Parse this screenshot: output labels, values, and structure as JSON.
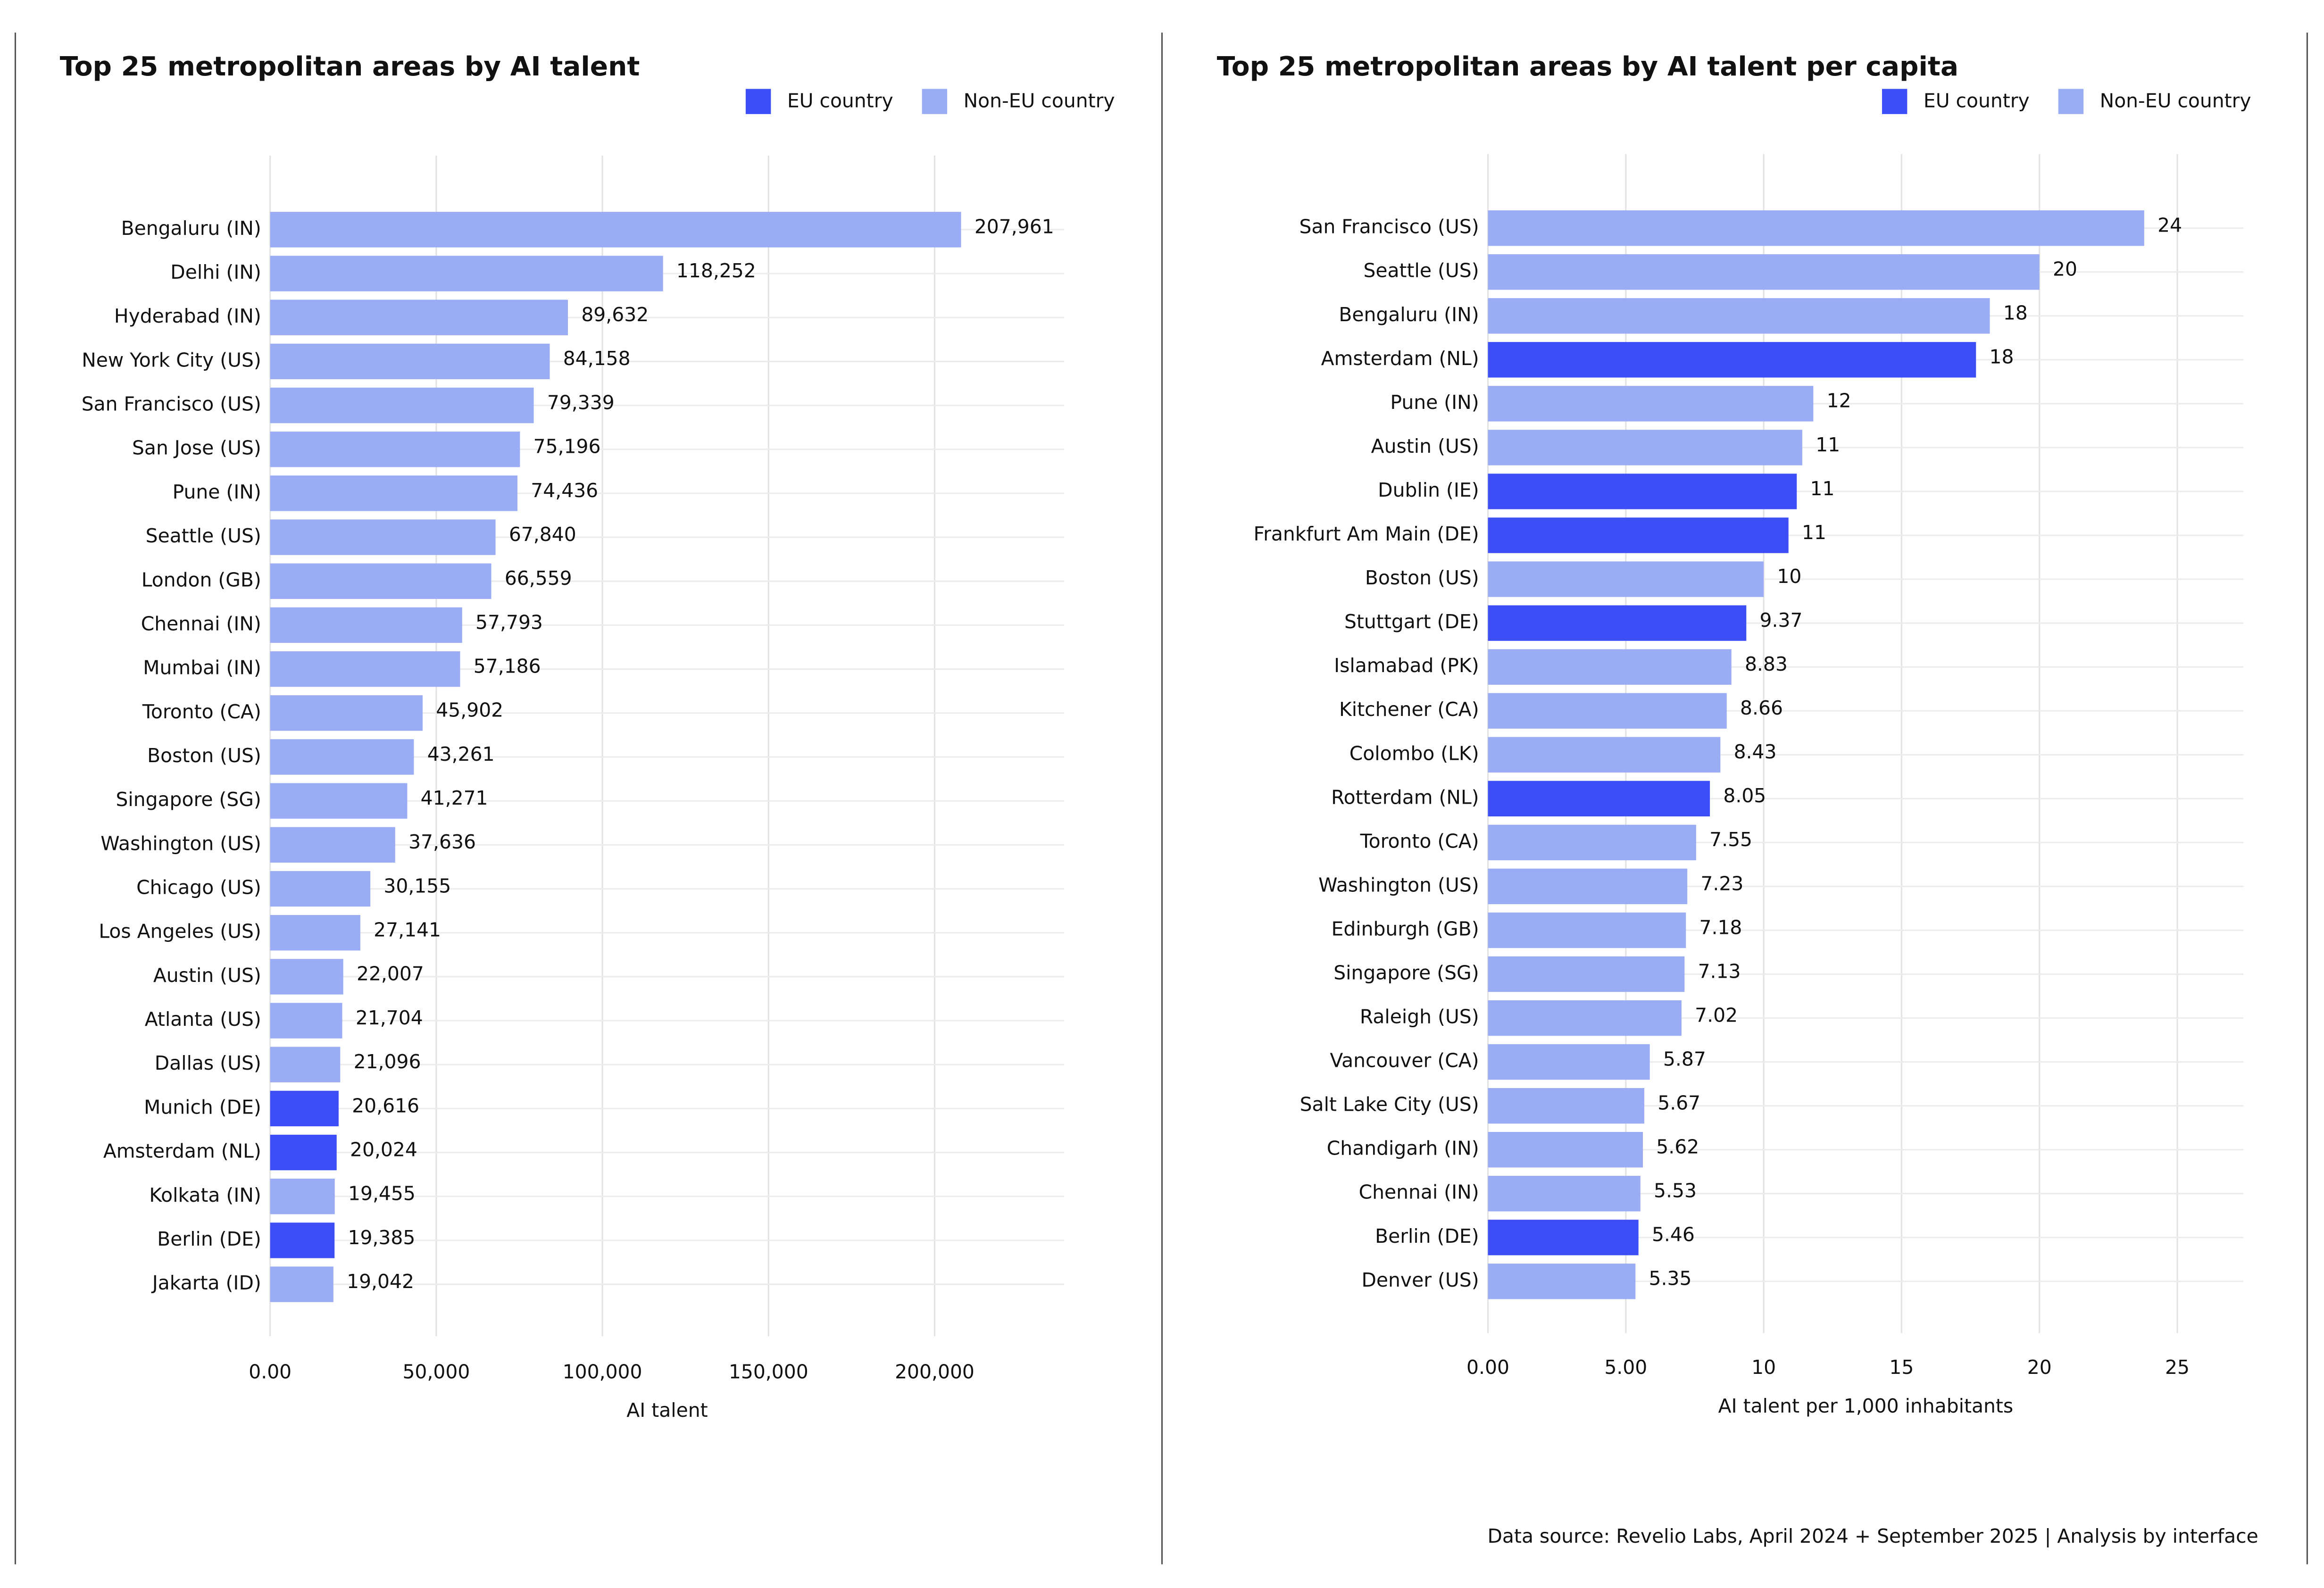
{
  "chart_data": [
    {
      "type": "hbar",
      "title": "Top 25 metropolitan areas by AI talent",
      "xlabel": "AI talent",
      "categories": [
        "Bengaluru (IN)",
        "Delhi (IN)",
        "Hyderabad (IN)",
        "New York City (US)",
        "San Francisco (US)",
        "San Jose (US)",
        "Pune (IN)",
        "Seattle (US)",
        "London (GB)",
        "Chennai (IN)",
        "Mumbai (IN)",
        "Toronto (CA)",
        "Boston (US)",
        "Singapore (SG)",
        "Washington (US)",
        "Chicago (US)",
        "Los Angeles (US)",
        "Austin (US)",
        "Atlanta (US)",
        "Dallas (US)",
        "Munich (DE)",
        "Amsterdam (NL)",
        "Kolkata (IN)",
        "Berlin (DE)",
        "Jakarta (ID)"
      ],
      "series": [
        {
          "name": "EU country",
          "color": "#3d4ef7",
          "values": [
            null,
            null,
            null,
            null,
            null,
            null,
            null,
            null,
            null,
            null,
            null,
            null,
            null,
            null,
            null,
            null,
            null,
            null,
            null,
            null,
            20616,
            20024,
            null,
            19385,
            null
          ],
          "value_labels": [
            null,
            null,
            null,
            null,
            null,
            null,
            null,
            null,
            null,
            null,
            null,
            null,
            null,
            null,
            null,
            null,
            null,
            null,
            null,
            null,
            "20,616",
            "20,024",
            null,
            "19,385",
            null
          ]
        },
        {
          "name": "Non-EU country",
          "color": "#9aacf4",
          "values": [
            207961,
            118252,
            89632,
            84158,
            79339,
            75196,
            74436,
            67840,
            66559,
            57793,
            57186,
            45902,
            43261,
            41271,
            37636,
            30155,
            27141,
            22007,
            21704,
            21096,
            null,
            null,
            19455,
            null,
            19042
          ],
          "value_labels": [
            "207,961",
            "118,252",
            "89,632",
            "84,158",
            "79,339",
            "75,196",
            "74,436",
            "67,840",
            "66,559",
            "57,793",
            "57,186",
            "45,902",
            "43,261",
            "41,271",
            "37,636",
            "30,155",
            "27,141",
            "22,007",
            "21,704",
            "21,096",
            null,
            null,
            "19,455",
            null,
            "19,042"
          ]
        }
      ],
      "xlim": [
        0,
        239000
      ],
      "xticks": [
        {
          "value": 0,
          "label": "0.00"
        },
        {
          "value": 50000,
          "label": "50,000"
        },
        {
          "value": 100000,
          "label": "100,000"
        },
        {
          "value": 150000,
          "label": "150,000"
        },
        {
          "value": 200000,
          "label": "200,000"
        }
      ],
      "grid": true,
      "legend": "top-right"
    },
    {
      "type": "hbar",
      "title": "Top 25 metropolitan areas by AI talent per capita",
      "xlabel": "AI talent per 1,000 inhabitants",
      "categories": [
        "San Francisco (US)",
        "Seattle (US)",
        "Bengaluru (IN)",
        "Amsterdam (NL)",
        "Pune (IN)",
        "Austin (US)",
        "Dublin (IE)",
        "Frankfurt Am Main (DE)",
        "Boston (US)",
        "Stuttgart (DE)",
        "Islamabad (PK)",
        "Kitchener (CA)",
        "Colombo (LK)",
        "Rotterdam (NL)",
        "Toronto (CA)",
        "Washington (US)",
        "Edinburgh (GB)",
        "Singapore (SG)",
        "Raleigh (US)",
        "Vancouver (CA)",
        "Salt Lake City (US)",
        "Chandigarh (IN)",
        "Chennai (IN)",
        "Berlin (DE)",
        "Denver (US)"
      ],
      "series": [
        {
          "name": "EU country",
          "color": "#3d4ef7",
          "values": [
            null,
            null,
            null,
            17.7,
            null,
            null,
            11.2,
            10.9,
            null,
            9.37,
            null,
            null,
            null,
            8.05,
            null,
            null,
            null,
            null,
            null,
            null,
            null,
            null,
            null,
            5.46,
            null
          ],
          "value_labels": [
            null,
            null,
            null,
            "18",
            null,
            null,
            "11",
            "11",
            null,
            "9.37",
            null,
            null,
            null,
            "8.05",
            null,
            null,
            null,
            null,
            null,
            null,
            null,
            null,
            null,
            "5.46",
            null
          ]
        },
        {
          "name": "Non-EU country",
          "color": "#9aacf4",
          "values": [
            23.8,
            20,
            18.2,
            null,
            11.8,
            11.4,
            null,
            null,
            10,
            null,
            8.83,
            8.66,
            8.43,
            null,
            7.55,
            7.23,
            7.18,
            7.13,
            7.02,
            5.87,
            5.67,
            5.62,
            5.53,
            null,
            5.35
          ],
          "value_labels": [
            "24",
            "20",
            "18",
            null,
            "12",
            "11",
            null,
            null,
            "10",
            null,
            "8.83",
            "8.66",
            "8.43",
            null,
            "7.55",
            "7.23",
            "7.18",
            "7.13",
            "7.02",
            "5.87",
            "5.67",
            "5.62",
            "5.53",
            null,
            "5.35"
          ]
        }
      ],
      "xlim": [
        0,
        27.4
      ],
      "xticks": [
        {
          "value": 0,
          "label": "0.00"
        },
        {
          "value": 5,
          "label": "5.00"
        },
        10,
        15,
        20,
        25
      ],
      "grid": true,
      "legend": "top-right"
    }
  ],
  "footer": "Data source: Revelio Labs, April 2024 + September 2025 | Analysis by interface"
}
